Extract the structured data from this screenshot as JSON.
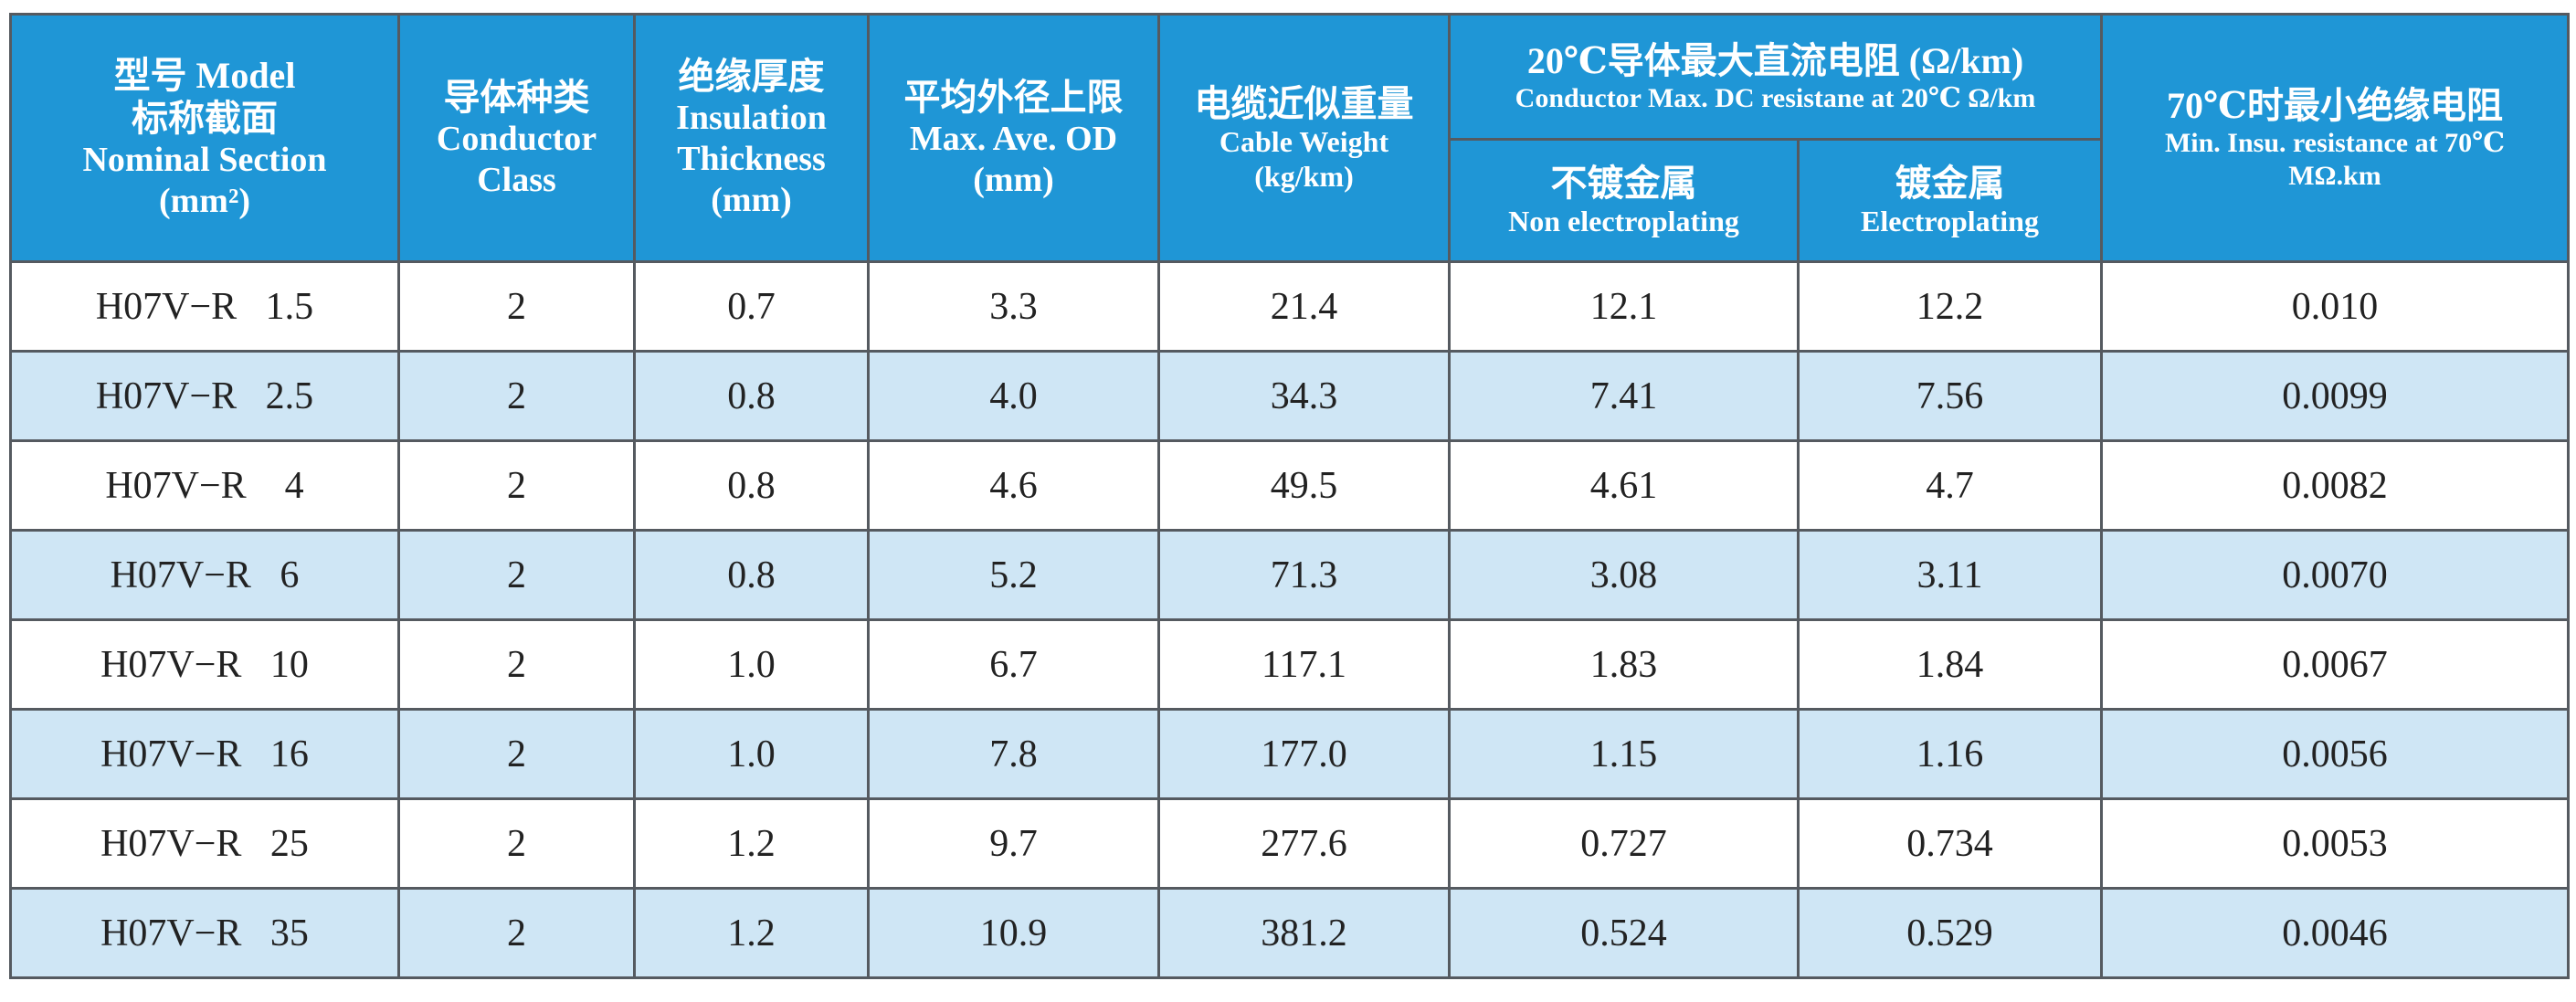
{
  "header": {
    "model": {
      "line1": "型号 Model",
      "line2": "标称截面",
      "line3": "Nominal Section",
      "line4": "(mm²)"
    },
    "conductor_class": {
      "line1": "导体种类",
      "line2": "Conductor",
      "line3": "Class"
    },
    "insulation": {
      "line1": "绝缘厚度",
      "line2": "Insulation",
      "line3": "Thickness",
      "line4": "(mm)"
    },
    "od": {
      "line1": "平均外径上限",
      "line2": "Max. Ave. OD",
      "line3": "(mm)"
    },
    "weight": {
      "line1": "电缆近似重量",
      "line2": "Cable Weight",
      "line3": "(kg/km)"
    },
    "resistance": {
      "line1": "20℃导体最大直流电阻 (Ω/km)",
      "line2": "Conductor Max. DC resistane at 20℃ Ω/km",
      "non_plated_cn": "不镀金属",
      "non_plated_en": "Non electroplating",
      "plated_cn": "镀金属",
      "plated_en": "Electroplating"
    },
    "min_insulation": {
      "line1": "70℃时最小绝缘电阻",
      "line2": "Min. Insu. resistance at 70℃",
      "line3": "MΩ.km"
    }
  },
  "rows": [
    {
      "model": "H07V−R   1.5",
      "class": "2",
      "thickness": "0.7",
      "od": "3.3",
      "weight": "21.4",
      "res_non": "12.1",
      "res_plated": "12.2",
      "min_res": "0.010"
    },
    {
      "model": "H07V−R   2.5",
      "class": "2",
      "thickness": "0.8",
      "od": "4.0",
      "weight": "34.3",
      "res_non": "7.41",
      "res_plated": "7.56",
      "min_res": "0.0099"
    },
    {
      "model": "H07V−R    4",
      "class": "2",
      "thickness": "0.8",
      "od": "4.6",
      "weight": "49.5",
      "res_non": "4.61",
      "res_plated": "4.7",
      "min_res": "0.0082"
    },
    {
      "model": "H07V−R   6",
      "class": "2",
      "thickness": "0.8",
      "od": "5.2",
      "weight": "71.3",
      "res_non": "3.08",
      "res_plated": "3.11",
      "min_res": "0.0070"
    },
    {
      "model": "H07V−R   10",
      "class": "2",
      "thickness": "1.0",
      "od": "6.7",
      "weight": "117.1",
      "res_non": "1.83",
      "res_plated": "1.84",
      "min_res": "0.0067"
    },
    {
      "model": "H07V−R   16",
      "class": "2",
      "thickness": "1.0",
      "od": "7.8",
      "weight": "177.0",
      "res_non": "1.15",
      "res_plated": "1.16",
      "min_res": "0.0056"
    },
    {
      "model": "H07V−R   25",
      "class": "2",
      "thickness": "1.2",
      "od": "9.7",
      "weight": "277.6",
      "res_non": "0.727",
      "res_plated": "0.734",
      "min_res": "0.0053"
    },
    {
      "model": "H07V−R   35",
      "class": "2",
      "thickness": "1.2",
      "od": "10.9",
      "weight": "381.2",
      "res_non": "0.524",
      "res_plated": "0.529",
      "min_res": "0.0046"
    }
  ],
  "colors": {
    "header_bg": "#1f96d6",
    "stripe_bg": "#cfe6f5",
    "border": "#555a60"
  }
}
